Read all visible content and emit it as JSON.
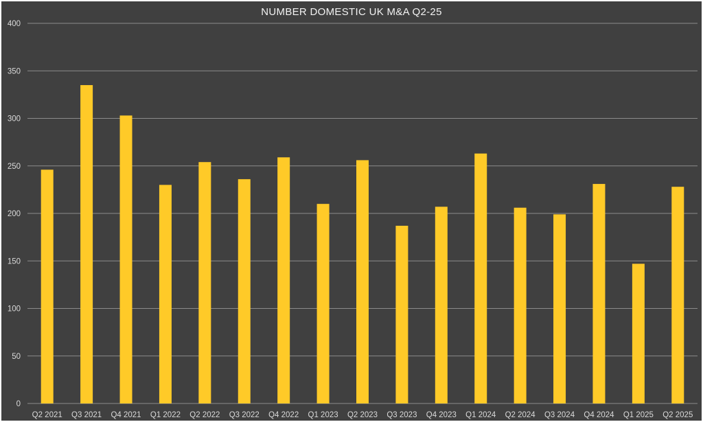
{
  "chart_data": {
    "type": "bar",
    "title": "NUMBER DOMESTIC UK M&A Q2-25",
    "xlabel": "",
    "ylabel": "",
    "categories": [
      "Q2 2021",
      "Q3 2021",
      "Q4 2021",
      "Q1 2022",
      "Q2 2022",
      "Q3 2022",
      "Q4 2022",
      "Q1 2023",
      "Q2 2023",
      "Q3 2023",
      "Q4 2023",
      "Q1 2024",
      "Q2 2024",
      "Q3 2024",
      "Q4 2024",
      "Q1 2025",
      "Q2 2025"
    ],
    "values": [
      246,
      335,
      303,
      230,
      254,
      236,
      259,
      210,
      256,
      187,
      207,
      263,
      206,
      199,
      231,
      147,
      228
    ],
    "ylim": [
      0,
      400
    ],
    "yticks": [
      0,
      50,
      100,
      150,
      200,
      250,
      300,
      350,
      400
    ],
    "grid": true,
    "legend": "none",
    "colors": {
      "background": "#404040",
      "bar": "#ffca28",
      "grid": "#8c8c8c",
      "text": "#d9d9d9"
    }
  }
}
